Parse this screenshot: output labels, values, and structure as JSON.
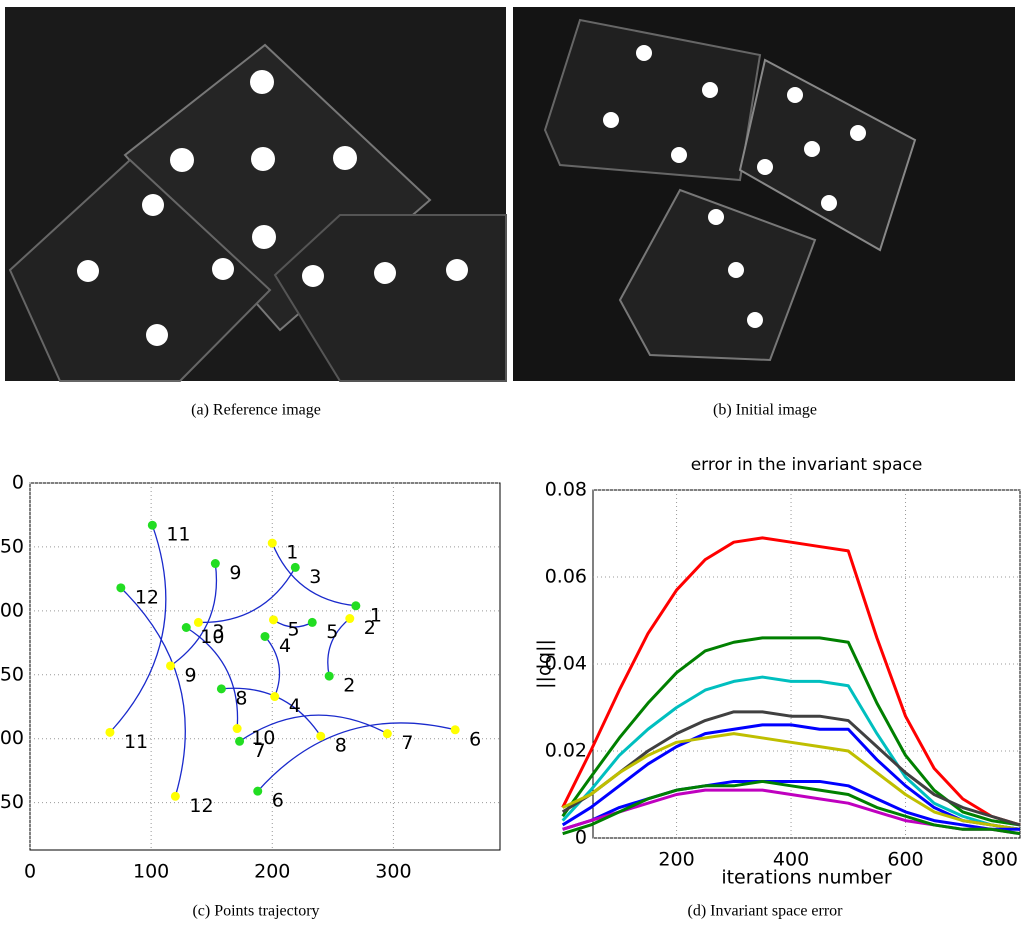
{
  "captions": {
    "a": "(a) Reference image",
    "b": "(b) Initial image",
    "c": "(c) Points trajectory",
    "d": "(d) Invariant space error"
  },
  "chart_data": [
    {
      "type": "scatter",
      "xlim": [
        0,
        388
      ],
      "ylim": [
        0,
        287
      ],
      "y_inverted": true,
      "xticks": [
        0,
        100,
        200,
        300
      ],
      "yticks": [
        0,
        50,
        100,
        150,
        200,
        250
      ],
      "grid": true,
      "series": [
        {
          "color": "#ffff00",
          "labels": [
            "1",
            "2",
            "3",
            "4",
            "5",
            "6",
            "7",
            "8",
            "9",
            "10",
            "11",
            "12"
          ],
          "x": [
            200,
            264,
            139,
            202,
            201,
            351,
            295,
            240,
            116,
            171,
            66,
            120
          ],
          "values": [
            47,
            106,
            109,
            167,
            107,
            193,
            196,
            198,
            143,
            192,
            195,
            245
          ]
        },
        {
          "color": "#22dd22",
          "labels": [
            "1",
            "2",
            "3",
            "4",
            "5",
            "6",
            "7",
            "8",
            "9",
            "10",
            "11",
            "12"
          ],
          "x": [
            269,
            247,
            219,
            194,
            233,
            188,
            173,
            158,
            153,
            129,
            101,
            75
          ],
          "values": [
            96,
            151,
            66,
            120,
            109,
            241,
            202,
            161,
            63,
            113,
            33,
            82
          ]
        }
      ]
    },
    {
      "type": "line",
      "title": "error in the invariant space",
      "xlabel": "iterations number",
      "ylabel": "||dq||",
      "xlim": [
        54,
        800
      ],
      "ylim": [
        0,
        0.08
      ],
      "xticks": [
        200,
        400,
        600,
        800
      ],
      "yticks": [
        0,
        0.02,
        0.04,
        0.06,
        0.08
      ],
      "grid": true,
      "x": [
        1,
        50,
        100,
        150,
        200,
        250,
        300,
        350,
        400,
        450,
        500,
        550,
        600,
        650,
        700,
        750,
        800
      ],
      "series": [
        {
          "color": "#ff0000",
          "values": [
            0.007,
            0.02,
            0.034,
            0.047,
            0.057,
            0.064,
            0.068,
            0.069,
            0.068,
            0.067,
            0.066,
            0.046,
            0.028,
            0.016,
            0.009,
            0.005,
            0.003
          ]
        },
        {
          "color": "#008000",
          "values": [
            0.005,
            0.014,
            0.023,
            0.031,
            0.038,
            0.043,
            0.045,
            0.046,
            0.046,
            0.046,
            0.045,
            0.031,
            0.019,
            0.011,
            0.006,
            0.004,
            0.003
          ]
        },
        {
          "color": "#00bfbf",
          "values": [
            0.004,
            0.011,
            0.019,
            0.025,
            0.03,
            0.034,
            0.036,
            0.037,
            0.036,
            0.036,
            0.035,
            0.024,
            0.014,
            0.008,
            0.005,
            0.003,
            0.002
          ]
        },
        {
          "color": "#404040",
          "values": [
            0.006,
            0.01,
            0.015,
            0.02,
            0.024,
            0.027,
            0.029,
            0.029,
            0.028,
            0.028,
            0.027,
            0.021,
            0.015,
            0.01,
            0.007,
            0.005,
            0.003
          ]
        },
        {
          "color": "#0000ff",
          "values": [
            0.003,
            0.007,
            0.012,
            0.017,
            0.021,
            0.024,
            0.025,
            0.026,
            0.026,
            0.025,
            0.025,
            0.018,
            0.012,
            0.007,
            0.004,
            0.003,
            0.002
          ]
        },
        {
          "color": "#bfbf00",
          "values": [
            0.007,
            0.01,
            0.015,
            0.019,
            0.022,
            0.023,
            0.024,
            0.023,
            0.022,
            0.021,
            0.02,
            0.015,
            0.01,
            0.006,
            0.004,
            0.003,
            0.002
          ]
        },
        {
          "color": "#0000ff",
          "values": [
            0.002,
            0.004,
            0.007,
            0.009,
            0.011,
            0.012,
            0.013,
            0.013,
            0.013,
            0.013,
            0.012,
            0.009,
            0.006,
            0.004,
            0.003,
            0.002,
            0.002
          ]
        },
        {
          "color": "#bf00bf",
          "values": [
            0.002,
            0.004,
            0.006,
            0.008,
            0.01,
            0.011,
            0.011,
            0.011,
            0.01,
            0.009,
            0.008,
            0.006,
            0.004,
            0.003,
            0.002,
            0.002,
            0.001
          ]
        },
        {
          "color": "#008000",
          "values": [
            0.001,
            0.003,
            0.006,
            0.009,
            0.011,
            0.012,
            0.012,
            0.013,
            0.012,
            0.011,
            0.01,
            0.007,
            0.005,
            0.003,
            0.002,
            0.002,
            0.001
          ]
        }
      ]
    }
  ]
}
